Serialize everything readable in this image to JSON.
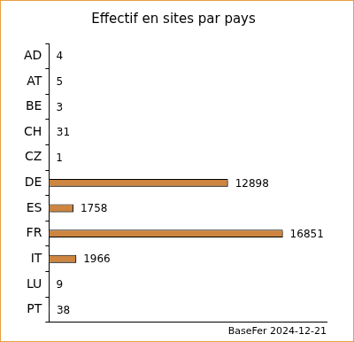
{
  "chart_data": {
    "type": "bar",
    "orientation": "horizontal",
    "title": "Effectif en sites par pays",
    "source": "BaseFer 2024-12-21",
    "categories": [
      "AD",
      "AT",
      "BE",
      "CH",
      "CZ",
      "DE",
      "ES",
      "FR",
      "IT",
      "LU",
      "PT"
    ],
    "values": [
      4,
      5,
      3,
      31,
      1,
      12898,
      1758,
      16851,
      1966,
      9,
      38
    ],
    "color": "#cd853f",
    "xlim": [
      0,
      20000
    ],
    "grid": false,
    "data_labels": true,
    "tick_labels": "y"
  }
}
